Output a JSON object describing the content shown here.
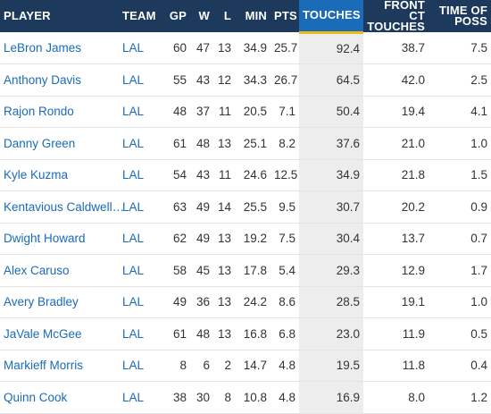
{
  "colors": {
    "header_bg": "#1d3a5c",
    "sorted_header_bg": "#1a6bb8",
    "sorted_underline": "#f2b91d",
    "link": "#1a6bb8",
    "sorted_cell_bg": "#ededed"
  },
  "table": {
    "headers": [
      {
        "key": "player",
        "label": "PLAYER"
      },
      {
        "key": "team",
        "label": "TEAM"
      },
      {
        "key": "gp",
        "label": "GP"
      },
      {
        "key": "w",
        "label": "W"
      },
      {
        "key": "l",
        "label": "L"
      },
      {
        "key": "min",
        "label": "MIN"
      },
      {
        "key": "pts",
        "label": "PTS"
      },
      {
        "key": "touches",
        "label": "TOUCHES"
      },
      {
        "key": "front_ct_touches",
        "label": "FRONT CT TOUCHES"
      },
      {
        "key": "time_of_poss",
        "label": "TIME OF POSS"
      }
    ],
    "sorted_by": "touches",
    "rows": [
      {
        "player": "LeBron James",
        "team": "LAL",
        "gp": "60",
        "w": "47",
        "l": "13",
        "min": "34.9",
        "pts": "25.7",
        "touches": "92.4",
        "front_ct_touches": "38.7",
        "time_of_poss": "7.5"
      },
      {
        "player": "Anthony Davis",
        "team": "LAL",
        "gp": "55",
        "w": "43",
        "l": "12",
        "min": "34.3",
        "pts": "26.7",
        "touches": "64.5",
        "front_ct_touches": "42.0",
        "time_of_poss": "2.5"
      },
      {
        "player": "Rajon Rondo",
        "team": "LAL",
        "gp": "48",
        "w": "37",
        "l": "11",
        "min": "20.5",
        "pts": "7.1",
        "touches": "50.4",
        "front_ct_touches": "19.4",
        "time_of_poss": "4.1"
      },
      {
        "player": "Danny Green",
        "team": "LAL",
        "gp": "61",
        "w": "48",
        "l": "13",
        "min": "25.1",
        "pts": "8.2",
        "touches": "37.6",
        "front_ct_touches": "21.0",
        "time_of_poss": "1.0"
      },
      {
        "player": "Kyle Kuzma",
        "team": "LAL",
        "gp": "54",
        "w": "43",
        "l": "11",
        "min": "24.6",
        "pts": "12.5",
        "touches": "34.9",
        "front_ct_touches": "21.8",
        "time_of_poss": "1.5"
      },
      {
        "player": "Kentavious Caldwell…",
        "team": "LAL",
        "gp": "63",
        "w": "49",
        "l": "14",
        "min": "25.5",
        "pts": "9.5",
        "touches": "30.7",
        "front_ct_touches": "20.2",
        "time_of_poss": "0.9"
      },
      {
        "player": "Dwight Howard",
        "team": "LAL",
        "gp": "62",
        "w": "49",
        "l": "13",
        "min": "19.2",
        "pts": "7.5",
        "touches": "30.4",
        "front_ct_touches": "13.7",
        "time_of_poss": "0.7"
      },
      {
        "player": "Alex Caruso",
        "team": "LAL",
        "gp": "58",
        "w": "45",
        "l": "13",
        "min": "17.8",
        "pts": "5.4",
        "touches": "29.3",
        "front_ct_touches": "12.9",
        "time_of_poss": "1.7"
      },
      {
        "player": "Avery Bradley",
        "team": "LAL",
        "gp": "49",
        "w": "36",
        "l": "13",
        "min": "24.2",
        "pts": "8.6",
        "touches": "28.5",
        "front_ct_touches": "19.1",
        "time_of_poss": "1.0"
      },
      {
        "player": "JaVale McGee",
        "team": "LAL",
        "gp": "61",
        "w": "48",
        "l": "13",
        "min": "16.8",
        "pts": "6.8",
        "touches": "23.0",
        "front_ct_touches": "11.9",
        "time_of_poss": "0.5"
      },
      {
        "player": "Markieff Morris",
        "team": "LAL",
        "gp": "8",
        "w": "6",
        "l": "2",
        "min": "14.7",
        "pts": "4.8",
        "touches": "19.5",
        "front_ct_touches": "11.8",
        "time_of_poss": "0.4"
      },
      {
        "player": "Quinn Cook",
        "team": "LAL",
        "gp": "38",
        "w": "30",
        "l": "8",
        "min": "10.8",
        "pts": "4.8",
        "touches": "16.9",
        "front_ct_touches": "8.0",
        "time_of_poss": "1.2"
      }
    ]
  }
}
